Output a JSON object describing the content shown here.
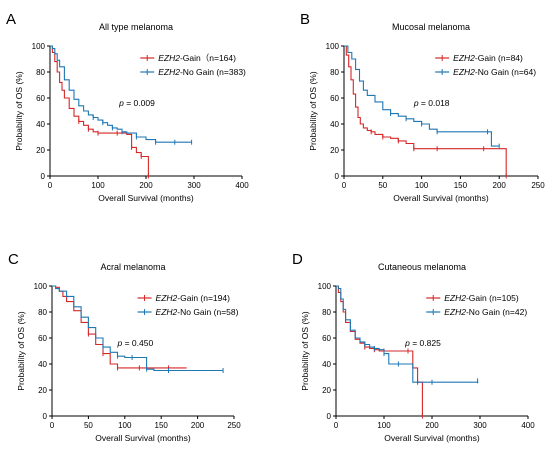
{
  "colors": {
    "gain": "#d62728",
    "nogain": "#1f77b4",
    "axis": "#000000"
  },
  "chart_data": [
    {
      "panel_letter": "A",
      "type": "line",
      "title": "All type melanoma",
      "xlabel": "Overall Survival (months)",
      "ylabel": "Probability of OS (%)",
      "xlim": [
        0,
        400
      ],
      "ylim": [
        0,
        100
      ],
      "xticks": [
        0,
        100,
        200,
        300,
        400
      ],
      "yticks": [
        0,
        20,
        40,
        60,
        80,
        100
      ],
      "p_label": "p",
      "p_value": "= 0.009",
      "series": [
        {
          "gene": "EZH2",
          "name": "-Gain（n=164)",
          "color": "gain",
          "x": [
            0,
            5,
            10,
            15,
            20,
            25,
            30,
            40,
            50,
            60,
            70,
            80,
            90,
            100,
            120,
            140,
            160,
            170,
            180,
            190,
            200,
            205
          ],
          "y": [
            100,
            95,
            88,
            80,
            72,
            66,
            60,
            52,
            46,
            42,
            39,
            36,
            34,
            33,
            33,
            33,
            32,
            22,
            18,
            15,
            15,
            0
          ]
        },
        {
          "gene": "EZH2",
          "name": "-No Gain (n=383)",
          "color": "nogain",
          "x": [
            0,
            5,
            10,
            15,
            20,
            30,
            40,
            50,
            60,
            70,
            80,
            90,
            100,
            110,
            120,
            130,
            140,
            150,
            160,
            180,
            200,
            220,
            240,
            260,
            280,
            295
          ],
          "y": [
            100,
            98,
            94,
            89,
            84,
            74,
            66,
            59,
            54,
            50,
            47,
            45,
            43,
            41,
            39,
            37,
            36,
            34,
            33,
            30,
            28,
            26,
            26,
            26,
            26,
            26
          ]
        }
      ]
    },
    {
      "panel_letter": "B",
      "type": "line",
      "title": "Mucosal melanoma",
      "xlabel": "Overall Survival (months)",
      "ylabel": "Probability of OS (%)",
      "xlim": [
        0,
        250
      ],
      "ylim": [
        0,
        100
      ],
      "xticks": [
        0,
        50,
        100,
        150,
        200,
        250
      ],
      "yticks": [
        0,
        20,
        40,
        60,
        80,
        100
      ],
      "p_label": "p",
      "p_value": "= 0.018",
      "series": [
        {
          "gene": "EZH2",
          "name": "-Gain (n=84)",
          "color": "gain",
          "x": [
            0,
            3,
            6,
            9,
            12,
            15,
            18,
            21,
            25,
            30,
            35,
            40,
            50,
            60,
            70,
            80,
            90,
            100,
            120,
            150,
            180,
            205,
            209
          ],
          "y": [
            100,
            93,
            84,
            74,
            63,
            53,
            45,
            40,
            37,
            35,
            34,
            32,
            30,
            29,
            27,
            25,
            21,
            21,
            21,
            21,
            21,
            21,
            0
          ]
        },
        {
          "gene": "EZH2",
          "name": "-No Gain (n=64)",
          "color": "nogain",
          "x": [
            0,
            5,
            10,
            15,
            20,
            25,
            30,
            40,
            50,
            60,
            70,
            80,
            90,
            100,
            110,
            120,
            150,
            185,
            190,
            200
          ],
          "y": [
            100,
            95,
            90,
            82,
            73,
            66,
            62,
            57,
            51,
            48,
            46,
            44,
            42,
            40,
            36,
            34,
            34,
            34,
            23,
            23
          ]
        }
      ]
    },
    {
      "panel_letter": "C",
      "type": "line",
      "title": "Acral melanoma",
      "xlabel": "Overall Survival (months)",
      "ylabel": "Probability of OS (%)",
      "xlim": [
        0,
        250
      ],
      "ylim": [
        0,
        100
      ],
      "xticks": [
        0,
        50,
        100,
        150,
        200,
        250
      ],
      "yticks": [
        0,
        20,
        40,
        60,
        80,
        100
      ],
      "p_label": "p",
      "p_value": "= 0.450",
      "series": [
        {
          "gene": "EZH2",
          "name": "-Gain (n=194)",
          "color": "gain",
          "x": [
            0,
            5,
            10,
            15,
            20,
            30,
            40,
            50,
            60,
            70,
            80,
            90,
            100,
            120,
            140,
            160,
            185
          ],
          "y": [
            100,
            99,
            96,
            92,
            88,
            81,
            72,
            63,
            55,
            48,
            40,
            37,
            37,
            37,
            37,
            37,
            37
          ]
        },
        {
          "gene": "EZH2",
          "name": "-No Gain (n=58)",
          "color": "nogain",
          "x": [
            0,
            5,
            10,
            20,
            30,
            40,
            50,
            60,
            70,
            80,
            90,
            100,
            110,
            120,
            130,
            140,
            160,
            200,
            235
          ],
          "y": [
            100,
            98,
            96,
            92,
            84,
            76,
            68,
            60,
            53,
            49,
            46,
            45,
            45,
            45,
            36,
            35,
            35,
            35,
            35
          ]
        }
      ]
    },
    {
      "panel_letter": "D",
      "type": "line",
      "title": "Cutaneous melanoma",
      "xlabel": "Overall Survival (months)",
      "ylabel": "Probability of OS (%)",
      "xlim": [
        0,
        400
      ],
      "ylim": [
        0,
        100
      ],
      "xticks": [
        0,
        100,
        200,
        300,
        400
      ],
      "yticks": [
        0,
        20,
        40,
        60,
        80,
        100
      ],
      "p_label": "p",
      "p_value": "= 0.825",
      "series": [
        {
          "gene": "EZH2",
          "name": "-Gain (n=105)",
          "color": "gain",
          "x": [
            0,
            5,
            10,
            15,
            20,
            30,
            40,
            50,
            60,
            70,
            80,
            90,
            100,
            120,
            150,
            160,
            170,
            175,
            180
          ],
          "y": [
            100,
            95,
            88,
            80,
            72,
            65,
            59,
            56,
            53,
            52,
            51,
            50,
            50,
            50,
            50,
            37,
            26,
            26,
            0
          ]
        },
        {
          "gene": "EZH2",
          "name": "-No Gain (n=42)",
          "color": "nogain",
          "x": [
            0,
            5,
            10,
            15,
            20,
            30,
            40,
            50,
            60,
            70,
            80,
            90,
            100,
            110,
            130,
            160,
            200,
            250,
            295
          ],
          "y": [
            100,
            98,
            90,
            82,
            74,
            66,
            60,
            57,
            55,
            53,
            52,
            51,
            48,
            40,
            40,
            26,
            26,
            26,
            27
          ]
        }
      ]
    }
  ]
}
